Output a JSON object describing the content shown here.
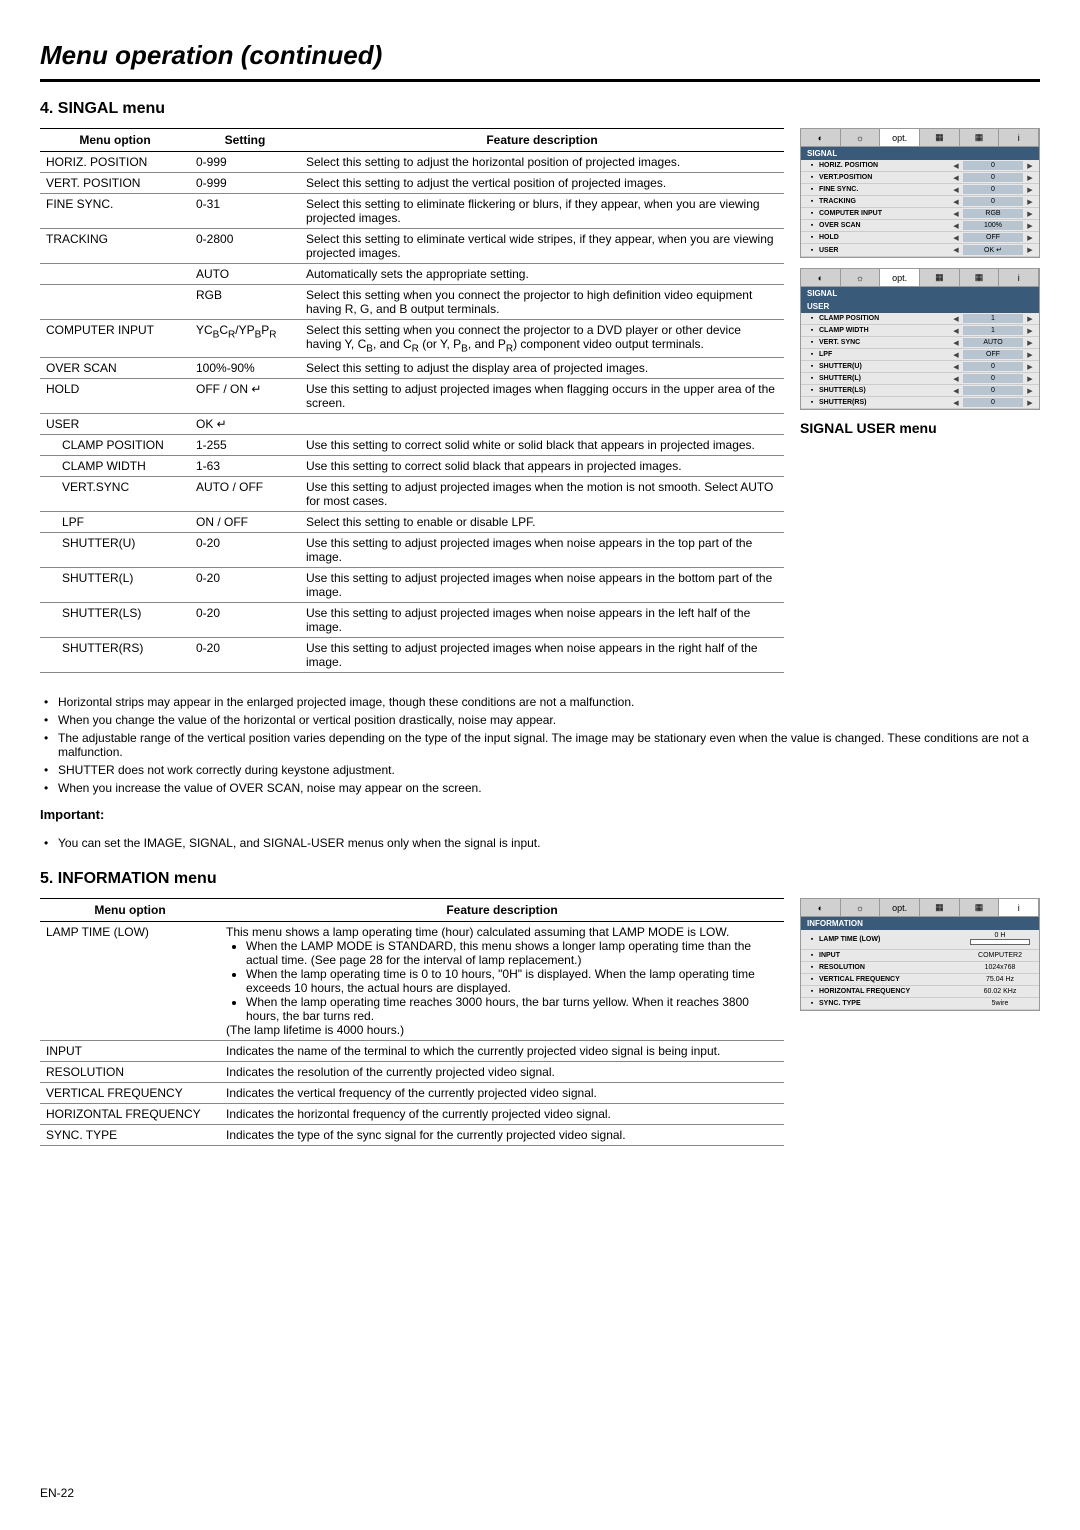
{
  "page": {
    "title": "Menu operation (continued)",
    "footer": "EN-22"
  },
  "signal": {
    "title": "4. SINGAL menu",
    "headers": {
      "opt": "Menu option",
      "set": "Setting",
      "desc": "Feature description"
    },
    "rows": [
      {
        "opt": "HORIZ. POSITION",
        "set": "0-999",
        "desc": "Select this setting to adjust the horizontal position of projected images."
      },
      {
        "opt": "VERT. POSITION",
        "set": "0-999",
        "desc": "Select this setting to adjust the vertical position of projected images."
      },
      {
        "opt": "FINE SYNC.",
        "set": "0-31",
        "desc": "Select this setting to eliminate flickering or blurs, if they appear, when you are viewing projected images."
      },
      {
        "opt": "TRACKING",
        "set": "0-2800",
        "desc": "Select this setting to eliminate vertical wide stripes, if they appear, when you are viewing projected images."
      },
      {
        "opt": "",
        "set": "AUTO",
        "desc": "Automatically sets the appropriate setting."
      },
      {
        "opt": "",
        "set": "RGB",
        "desc": "Select this setting when you connect the projector to high definition video equipment having R, G, and B output terminals."
      },
      {
        "opt": "COMPUTER INPUT",
        "set": "YC_BC_R/YP_BP_R",
        "desc": "Select this setting when you connect the projector to a DVD player or other device having Y, C_B, and C_R (or Y, P_B, and P_R) component video output terminals."
      },
      {
        "opt": "OVER SCAN",
        "set": "100%-90%",
        "desc": "Select this setting to adjust the display area of projected images."
      },
      {
        "opt": "HOLD",
        "set": "OFF / ON ↵",
        "desc": "Use this setting to adjust projected images when flagging occurs in the upper area of the screen."
      },
      {
        "opt": "USER",
        "set": "OK ↵",
        "desc": ""
      },
      {
        "opt": "CLAMP POSITION",
        "set": "1-255",
        "desc": "Use this setting to correct solid white or solid black that appears in projected images.",
        "indent": true
      },
      {
        "opt": "CLAMP WIDTH",
        "set": "1-63",
        "desc": "Use this setting to correct solid black that appears in projected images.",
        "indent": true
      },
      {
        "opt": "VERT.SYNC",
        "set": "AUTO / OFF",
        "desc": "Use this setting to adjust projected images when the motion is not smooth. Select AUTO for most cases.",
        "indent": true
      },
      {
        "opt": "LPF",
        "set": "ON / OFF",
        "desc": "Select this setting to enable or disable LPF.",
        "indent": true
      },
      {
        "opt": "SHUTTER(U)",
        "set": "0-20",
        "desc": "Use this setting to adjust projected images when noise appears in the top part of the image.",
        "indent": true
      },
      {
        "opt": "SHUTTER(L)",
        "set": "0-20",
        "desc": "Use this setting to adjust projected images when noise appears in the bottom part of the image.",
        "indent": true
      },
      {
        "opt": "SHUTTER(LS)",
        "set": "0-20",
        "desc": "Use this setting to adjust projected images when noise appears in the left half of the image.",
        "indent": true
      },
      {
        "opt": "SHUTTER(RS)",
        "set": "0-20",
        "desc": "Use this setting to adjust projected images when noise appears in the right half of the image.",
        "indent": true
      }
    ],
    "notes": [
      "Horizontal strips may appear in the enlarged projected image, though these conditions are not a malfunction.",
      "When you change the value of the horizontal or vertical position drastically, noise may appear.",
      "The adjustable range of the vertical position varies depending on the type of the input signal. The image may be stationary even when the value is changed. These conditions are not a malfunction.",
      "SHUTTER does not work correctly during keystone adjustment.",
      "When you increase the value of OVER SCAN, noise may appear on the screen."
    ],
    "important_label": "Important:",
    "important_note": "You can set the IMAGE, SIGNAL, and SIGNAL-USER menus only when the signal is input."
  },
  "osd_signal": {
    "header": "SIGNAL",
    "tabs": [
      "◐",
      "☼",
      "opt.",
      "▦",
      "▦",
      "i"
    ],
    "rows": [
      {
        "lbl": "HORIZ. POSITION",
        "val": "0"
      },
      {
        "lbl": "VERT.POSITION",
        "val": "0"
      },
      {
        "lbl": "FINE SYNC.",
        "val": "0"
      },
      {
        "lbl": "TRACKING",
        "val": "0"
      },
      {
        "lbl": "COMPUTER INPUT",
        "val": "RGB"
      },
      {
        "lbl": "OVER SCAN",
        "val": "100%"
      },
      {
        "lbl": "HOLD",
        "val": "OFF"
      },
      {
        "lbl": "USER",
        "val": "OK ↵"
      }
    ]
  },
  "osd_user": {
    "header1": "SIGNAL",
    "header2": "USER",
    "side_title": "SIGNAL USER menu",
    "rows": [
      {
        "lbl": "CLAMP POSITION",
        "val": "1"
      },
      {
        "lbl": "CLAMP WIDTH",
        "val": "1"
      },
      {
        "lbl": "VERT. SYNC",
        "val": "AUTO"
      },
      {
        "lbl": "LPF",
        "val": "OFF"
      },
      {
        "lbl": "SHUTTER(U)",
        "val": "0"
      },
      {
        "lbl": "SHUTTER(L)",
        "val": "0"
      },
      {
        "lbl": "SHUTTER(LS)",
        "val": "0"
      },
      {
        "lbl": "SHUTTER(RS)",
        "val": "0"
      }
    ]
  },
  "info": {
    "title": "5. INFORMATION menu",
    "headers": {
      "opt": "Menu option",
      "desc": "Feature description"
    },
    "lamp": {
      "opt": "LAMP TIME (LOW)",
      "intro": "This menu shows a lamp operating time (hour) calculated assuming that LAMP MODE is LOW.",
      "bullets": [
        "When the LAMP MODE is STANDARD, this menu shows a longer lamp operating time than the actual time. (See page 28 for the interval of lamp replacement.)",
        "When the lamp operating time is 0 to 10 hours, \"0H\" is displayed. When the lamp operating time exceeds 10 hours, the actual hours are displayed.",
        "When the lamp operating time reaches 3000 hours, the bar turns yellow. When it reaches 3800 hours, the bar turns red."
      ],
      "tail": "(The lamp lifetime is 4000 hours.)"
    },
    "rows": [
      {
        "opt": "INPUT",
        "desc": "Indicates the name of the terminal to which the currently projected video signal is being input."
      },
      {
        "opt": "RESOLUTION",
        "desc": "Indicates the resolution of the currently projected video signal."
      },
      {
        "opt": "VERTICAL FREQUENCY",
        "desc": "Indicates the vertical frequency of the currently projected video signal."
      },
      {
        "opt": "HORIZONTAL FREQUENCY",
        "desc": "Indicates the horizontal frequency of the currently projected video signal."
      },
      {
        "opt": "SYNC. TYPE",
        "desc": "Indicates the type of the sync signal for the currently projected video signal."
      }
    ]
  },
  "osd_info": {
    "header": "INFORMATION",
    "rows": [
      {
        "lbl": "LAMP TIME (LOW)",
        "val": "0 H",
        "bar": true
      },
      {
        "lbl": "INPUT",
        "val": "COMPUTER2"
      },
      {
        "lbl": "RESOLUTION",
        "val": "1024x768"
      },
      {
        "lbl": "VERTICAL FREQUENCY",
        "val": "75.04 Hz"
      },
      {
        "lbl": "HORIZONTAL FREQUENCY",
        "val": "60.02 KHz"
      },
      {
        "lbl": "SYNC. TYPE",
        "val": "5wire"
      }
    ]
  }
}
